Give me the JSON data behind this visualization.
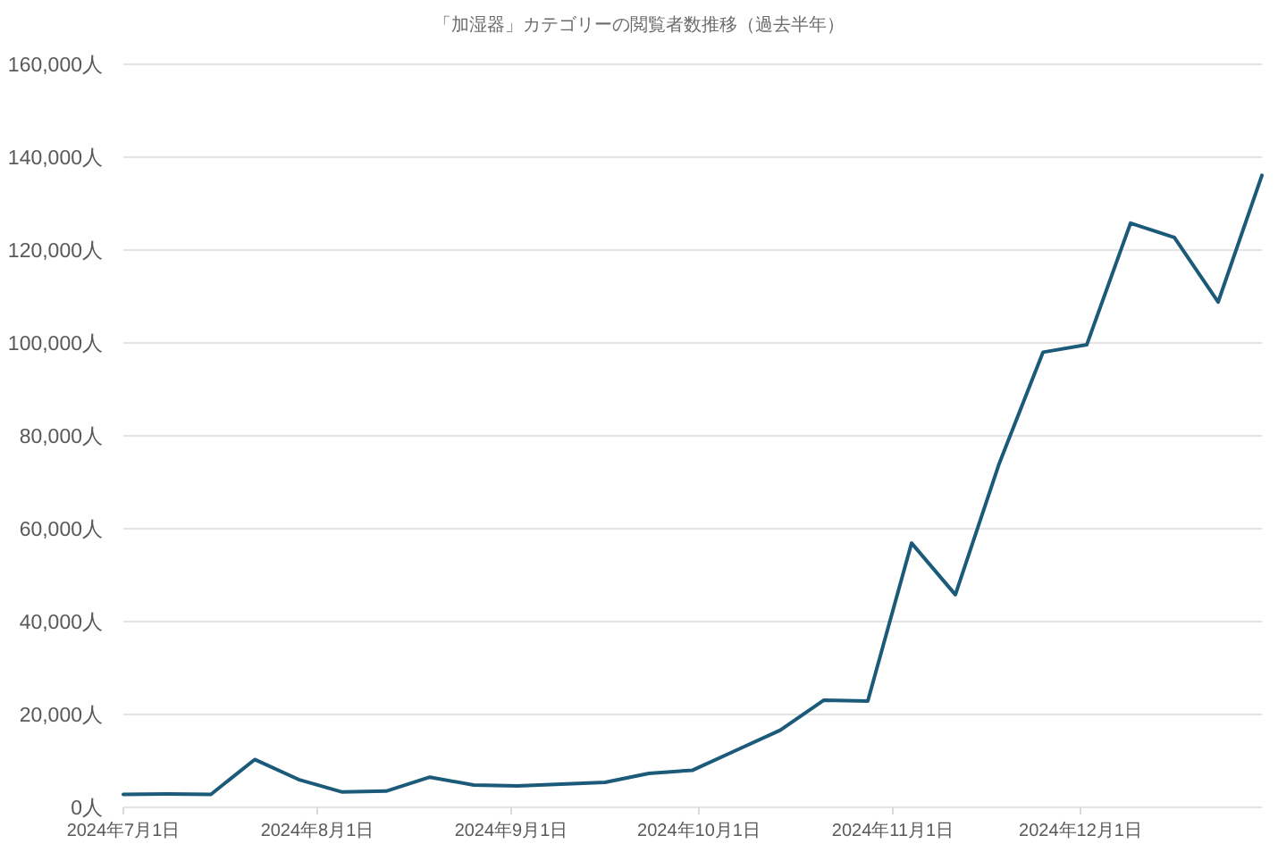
{
  "chart_data": {
    "type": "line",
    "title": "「加湿器」カテゴリーの閲覧者数推移（過去半年）",
    "x": [
      "2024-07-01",
      "2024-07-08",
      "2024-07-15",
      "2024-07-22",
      "2024-07-29",
      "2024-08-05",
      "2024-08-12",
      "2024-08-19",
      "2024-08-26",
      "2024-09-02",
      "2024-09-09",
      "2024-09-16",
      "2024-09-23",
      "2024-09-30",
      "2024-10-07",
      "2024-10-14",
      "2024-10-21",
      "2024-10-28",
      "2024-11-04",
      "2024-11-11",
      "2024-11-18",
      "2024-11-25",
      "2024-12-02",
      "2024-12-09",
      "2024-12-16",
      "2024-12-23",
      "2024-12-30"
    ],
    "series": [
      {
        "color": "#1b5a78",
        "values": [
          2800,
          2900,
          2800,
          10300,
          6000,
          3300,
          3500,
          6500,
          4800,
          4600,
          5000,
          5400,
          7300,
          8000,
          12300,
          16600,
          23100,
          22900,
          56900,
          45800,
          74000,
          98000,
          99600,
          125800,
          122700,
          108800,
          136100
        ]
      }
    ],
    "xlim": [
      "2024-07-01",
      "2024-12-30"
    ],
    "xticks": [
      {
        "value": "2024-07-01",
        "label": "2024年7月1日"
      },
      {
        "value": "2024-08-01",
        "label": "2024年8月1日"
      },
      {
        "value": "2024-09-01",
        "label": "2024年9月1日"
      },
      {
        "value": "2024-10-01",
        "label": "2024年10月1日"
      },
      {
        "value": "2024-11-01",
        "label": "2024年11月1日"
      },
      {
        "value": "2024-12-01",
        "label": "2024年12月1日"
      }
    ],
    "ylim": [
      0,
      160000
    ],
    "yticks": [
      {
        "value": 0,
        "label": "0人"
      },
      {
        "value": 20000,
        "label": "20,000人"
      },
      {
        "value": 40000,
        "label": "40,000人"
      },
      {
        "value": 60000,
        "label": "60,000人"
      },
      {
        "value": 80000,
        "label": "80,000人"
      },
      {
        "value": 100000,
        "label": "100,000人"
      },
      {
        "value": 120000,
        "label": "120,000人"
      },
      {
        "value": 140000,
        "label": "140,000人"
      },
      {
        "value": 160000,
        "label": "160,000人"
      }
    ],
    "grid": "y"
  }
}
